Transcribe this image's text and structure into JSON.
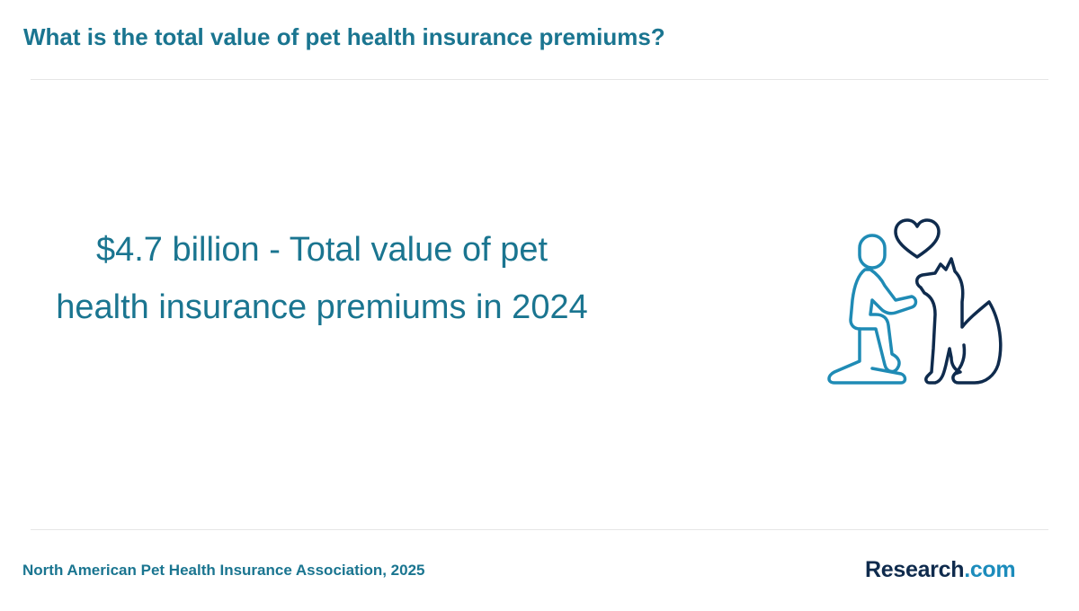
{
  "header": {
    "title": "What is the total value of pet health insurance premiums?"
  },
  "stat": {
    "text": "$4.7 billion - Total value of pet health insurance premiums in 2024"
  },
  "illustration": {
    "icon": "person-with-dog-icon",
    "person_color": "#1f8bb5",
    "dog_color": "#0f2b4d"
  },
  "footer": {
    "source": "North American Pet Health Insurance Association, 2025",
    "brand_main": "Research",
    "brand_tld": ".com"
  },
  "colors": {
    "accent": "#1a7590",
    "brand_dark": "#0f2b4d",
    "brand_light": "#1c8cbc"
  }
}
